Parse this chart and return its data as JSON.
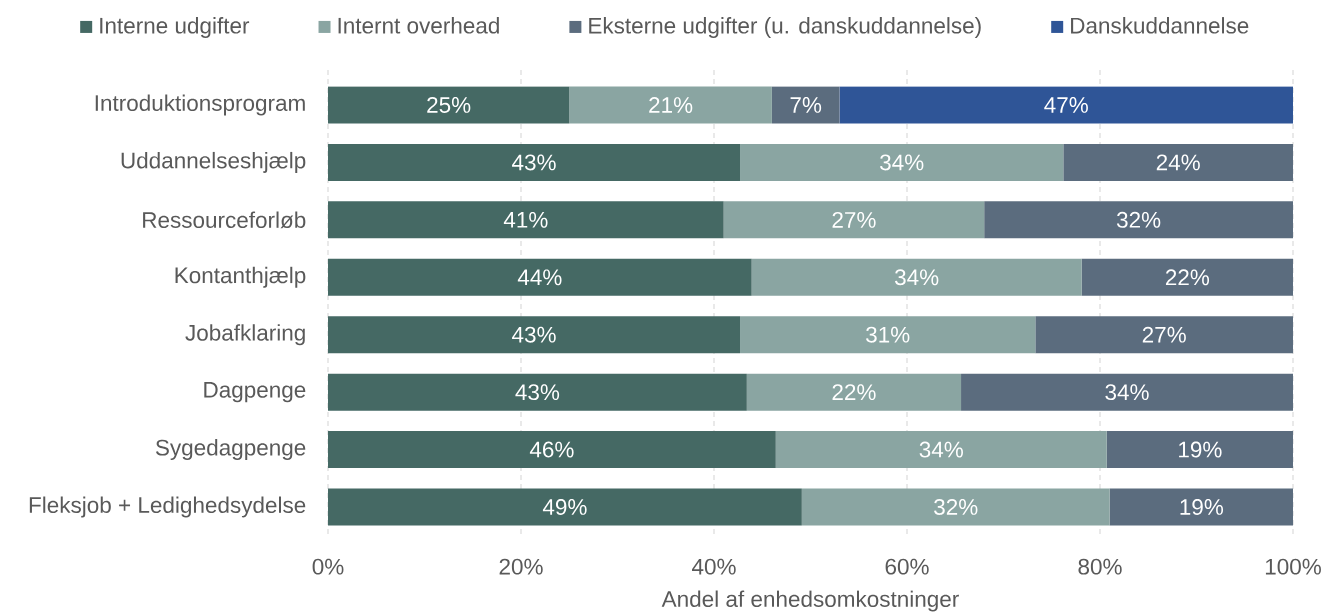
{
  "chart_data": {
    "type": "bar",
    "orientation": "horizontal",
    "stacked": true,
    "categories": [
      "Introduktionsprogram",
      "Uddannelseshjælp",
      "Ressourceforløb",
      "Kontanthjælp",
      "Jobafklaring",
      "Dagpenge",
      "Sygedagpenge",
      "Fleksjob + Ledighedsydelse"
    ],
    "series": [
      {
        "name": "Interne udgifter",
        "color": "#456964",
        "values": [
          25,
          42.7,
          41.0,
          43.9,
          42.7,
          43.4,
          46.4,
          49.1
        ],
        "value_labels": [
          "25%",
          "43%",
          "41%",
          "44%",
          "43%",
          "43%",
          "46%",
          "49%"
        ]
      },
      {
        "name": "Internt overhead",
        "color": "#8aa5a2",
        "values": [
          21,
          33.5,
          27.0,
          34.2,
          30.6,
          22.2,
          34.3,
          31.9
        ],
        "value_labels": [
          "21%",
          "34%",
          "27%",
          "34%",
          "31%",
          "22%",
          "34%",
          "32%"
        ]
      },
      {
        "name": "Eksterne udgifter (u. danskuddannelse)",
        "color": "#5b6c7e",
        "values": [
          7,
          23.8,
          32.0,
          21.9,
          26.7,
          34.4,
          19.3,
          19.0
        ],
        "value_labels": [
          "7%",
          "24%",
          "32%",
          "22%",
          "27%",
          "34%",
          "19%",
          "19%"
        ]
      },
      {
        "name": "Danskuddannelse",
        "color": "#2f5597",
        "values": [
          47,
          null,
          null,
          null,
          null,
          null,
          null,
          null
        ],
        "value_labels": [
          "47%",
          null,
          null,
          null,
          null,
          null,
          null,
          null
        ]
      }
    ],
    "xlabel": "Andel af enhedsomkostninger",
    "xlim": [
      0,
      100
    ],
    "xticks": [
      {
        "value": 0,
        "label": "0%"
      },
      {
        "value": 20,
        "label": "20%"
      },
      {
        "value": 40,
        "label": "40%"
      },
      {
        "value": 60,
        "label": "60%"
      },
      {
        "value": 80,
        "label": "80%"
      },
      {
        "value": 100,
        "label": "100%"
      }
    ],
    "grid": "x",
    "legend": "top"
  }
}
